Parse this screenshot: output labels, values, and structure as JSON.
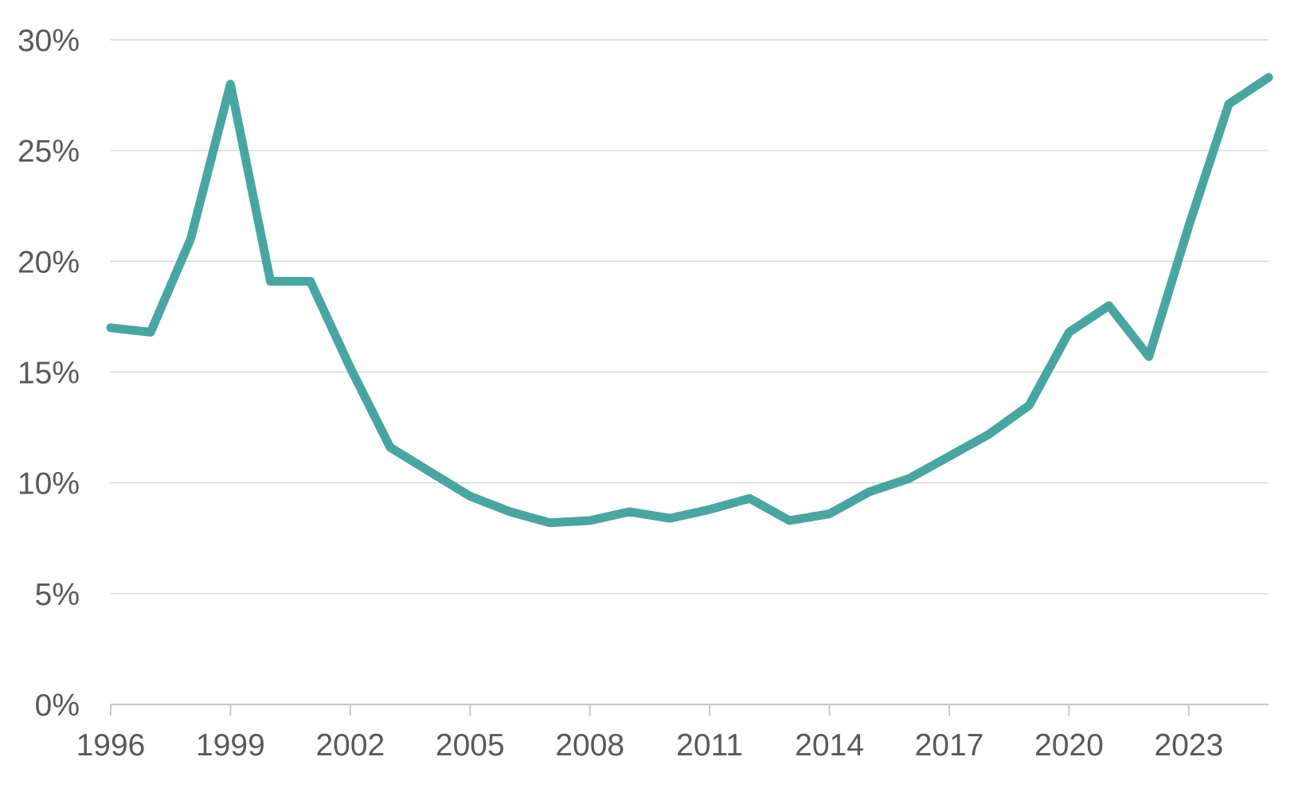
{
  "chart_data": {
    "type": "line",
    "x": [
      1996,
      1997,
      1998,
      1999,
      2000,
      2001,
      2002,
      2003,
      2004,
      2005,
      2006,
      2007,
      2008,
      2009,
      2010,
      2011,
      2012,
      2013,
      2014,
      2015,
      2016,
      2017,
      2018,
      2019,
      2020,
      2021,
      2022,
      2023,
      2024,
      2025
    ],
    "values": [
      17.0,
      16.8,
      21.0,
      28.0,
      19.1,
      19.1,
      15.2,
      11.6,
      10.5,
      9.4,
      8.7,
      8.2,
      8.3,
      8.7,
      8.4,
      8.8,
      9.3,
      8.3,
      8.6,
      9.6,
      10.2,
      11.2,
      12.2,
      13.5,
      16.8,
      18.0,
      15.7,
      21.6,
      27.1,
      28.3
    ],
    "title": "",
    "xlabel": "",
    "ylabel": "",
    "ylim": [
      0,
      30
    ],
    "xlim": [
      1996,
      2025
    ],
    "y_ticks": [
      {
        "value": 0,
        "label": "0%"
      },
      {
        "value": 5,
        "label": "5%"
      },
      {
        "value": 10,
        "label": "10%"
      },
      {
        "value": 15,
        "label": "15%"
      },
      {
        "value": 20,
        "label": "20%"
      },
      {
        "value": 25,
        "label": "25%"
      },
      {
        "value": 30,
        "label": "30%"
      }
    ],
    "x_ticks": [
      {
        "value": 1996,
        "label": "1996"
      },
      {
        "value": 1999,
        "label": "1999"
      },
      {
        "value": 2002,
        "label": "2002"
      },
      {
        "value": 2005,
        "label": "2005"
      },
      {
        "value": 2008,
        "label": "2008"
      },
      {
        "value": 2011,
        "label": "2011"
      },
      {
        "value": 2014,
        "label": "2014"
      },
      {
        "value": 2017,
        "label": "2017"
      },
      {
        "value": 2020,
        "label": "2020"
      },
      {
        "value": 2023,
        "label": "2023"
      }
    ],
    "grid": "horizontal",
    "legend": "none",
    "colors": {
      "line": "#48A6A2",
      "gridline": "#D9D9D9",
      "axis": "#C8C8C8",
      "tick_text": "#595959",
      "background": "#FFFFFF"
    }
  }
}
